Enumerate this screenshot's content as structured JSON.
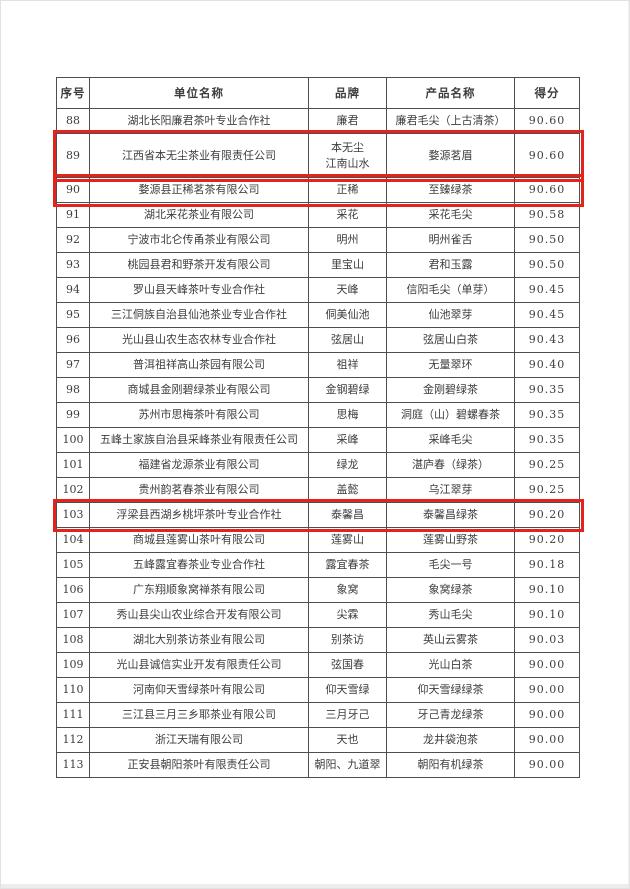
{
  "accent": {
    "highlight_red": "#e2241d",
    "table_border": "#4f4f4f",
    "text_color": "#3d3d3d",
    "page_background": "#ffffff"
  },
  "table": {
    "columns": [
      "序号",
      "单位名称",
      "品牌",
      "产品名称",
      "得分"
    ],
    "rows": [
      {
        "no": "88",
        "company": "湖北长阳廉君茶叶专业合作社",
        "brand_lines": [
          "廉君"
        ],
        "product": "廉君毛尖（上古清茶）",
        "score": "90.60",
        "highlighted": false
      },
      {
        "no": "89",
        "company": "江西省本无尘茶业有限责任公司",
        "brand_lines": [
          "本无尘",
          "江南山水"
        ],
        "product": "婺源茗眉",
        "score": "90.60",
        "highlighted": true
      },
      {
        "no": "90",
        "company": "婺源县正稀茗茶有限公司",
        "brand_lines": [
          "正稀"
        ],
        "product": "至臻绿茶",
        "score": "90.60",
        "highlighted": true
      },
      {
        "no": "91",
        "company": "湖北采花茶业有限公司",
        "brand_lines": [
          "采花"
        ],
        "product": "采花毛尖",
        "score": "90.58",
        "highlighted": false
      },
      {
        "no": "92",
        "company": "宁波市北仑传甬茶业有限公司",
        "brand_lines": [
          "明州"
        ],
        "product": "明州雀舌",
        "score": "90.50",
        "highlighted": false
      },
      {
        "no": "93",
        "company": "桃园县君和野茶开发有限公司",
        "brand_lines": [
          "里宝山"
        ],
        "product": "君和玉露",
        "score": "90.50",
        "highlighted": false
      },
      {
        "no": "94",
        "company": "罗山县天峰茶叶专业合作社",
        "brand_lines": [
          "天峰"
        ],
        "product": "信阳毛尖（单芽）",
        "score": "90.45",
        "highlighted": false
      },
      {
        "no": "95",
        "company": "三江侗族自治县仙池茶业专业合作社",
        "brand_lines": [
          "侗美仙池"
        ],
        "product": "仙池翠芽",
        "score": "90.45",
        "highlighted": false
      },
      {
        "no": "96",
        "company": "光山县山农生态农林专业合作社",
        "brand_lines": [
          "弦居山"
        ],
        "product": "弦居山白茶",
        "score": "90.43",
        "highlighted": false
      },
      {
        "no": "97",
        "company": "普洱祖祥高山茶园有限公司",
        "brand_lines": [
          "祖祥"
        ],
        "product": "无量翠环",
        "score": "90.40",
        "highlighted": false
      },
      {
        "no": "98",
        "company": "商城县金刚碧绿茶业有限公司",
        "brand_lines": [
          "金钢碧绿"
        ],
        "product": "金刚碧绿茶",
        "score": "90.35",
        "highlighted": false
      },
      {
        "no": "99",
        "company": "苏州市思梅茶叶有限公司",
        "brand_lines": [
          "思梅"
        ],
        "product": "洞庭（山）碧螺春茶",
        "score": "90.35",
        "highlighted": false
      },
      {
        "no": "100",
        "company": "五峰土家族自治县采峰茶业有限责任公司",
        "brand_lines": [
          "采峰"
        ],
        "product": "采峰毛尖",
        "score": "90.35",
        "highlighted": false
      },
      {
        "no": "101",
        "company": "福建省龙源茶业有限公司",
        "brand_lines": [
          "绿龙"
        ],
        "product": "湛庐春（绿茶）",
        "score": "90.25",
        "highlighted": false
      },
      {
        "no": "102",
        "company": "贵州韵茗春茶业有限公司",
        "brand_lines": [
          "盖懿"
        ],
        "product": "乌江翠芽",
        "score": "90.25",
        "highlighted": false
      },
      {
        "no": "103",
        "company": "浮梁县西湖乡桃坪茶叶专业合作社",
        "brand_lines": [
          "泰馨昌"
        ],
        "product": "泰馨昌绿茶",
        "score": "90.20",
        "highlighted": true
      },
      {
        "no": "104",
        "company": "商城县莲雾山茶叶有限公司",
        "brand_lines": [
          "莲雾山"
        ],
        "product": "莲雾山野茶",
        "score": "90.20",
        "highlighted": false
      },
      {
        "no": "105",
        "company": "五峰露宜春茶业专业合作社",
        "brand_lines": [
          "露宜春茶"
        ],
        "product": "毛尖一号",
        "score": "90.18",
        "highlighted": false
      },
      {
        "no": "106",
        "company": "广东翔顺象窝禅茶有限公司",
        "brand_lines": [
          "象窝"
        ],
        "product": "象窝绿茶",
        "score": "90.10",
        "highlighted": false
      },
      {
        "no": "107",
        "company": "秀山县尖山农业综合开发有限公司",
        "brand_lines": [
          "尖霖"
        ],
        "product": "秀山毛尖",
        "score": "90.10",
        "highlighted": false
      },
      {
        "no": "108",
        "company": "湖北大别茶访茶业有限公司",
        "brand_lines": [
          "别茶访"
        ],
        "product": "英山云雾茶",
        "score": "90.03",
        "highlighted": false
      },
      {
        "no": "109",
        "company": "光山县诚信实业开发有限责任公司",
        "brand_lines": [
          "弦国春"
        ],
        "product": "光山白茶",
        "score": "90.00",
        "highlighted": false
      },
      {
        "no": "110",
        "company": "河南仰天雪绿茶叶有限公司",
        "brand_lines": [
          "仰天雪绿"
        ],
        "product": "仰天雪绿绿茶",
        "score": "90.00",
        "highlighted": false
      },
      {
        "no": "111",
        "company": "三江县三月三乡耶茶业有限公司",
        "brand_lines": [
          "三月牙己"
        ],
        "product": "牙己青龙绿茶",
        "score": "90.00",
        "highlighted": false
      },
      {
        "no": "112",
        "company": "浙江天瑞有限公司",
        "brand_lines": [
          "天也"
        ],
        "product": "龙井袋泡茶",
        "score": "90.00",
        "highlighted": false
      },
      {
        "no": "113",
        "company": "正安县朝阳茶叶有限责任公司",
        "brand_lines": [
          "朝阳、九道翠"
        ],
        "product": "朝阳有机绿茶",
        "score": "90.00",
        "highlighted": false
      }
    ]
  }
}
